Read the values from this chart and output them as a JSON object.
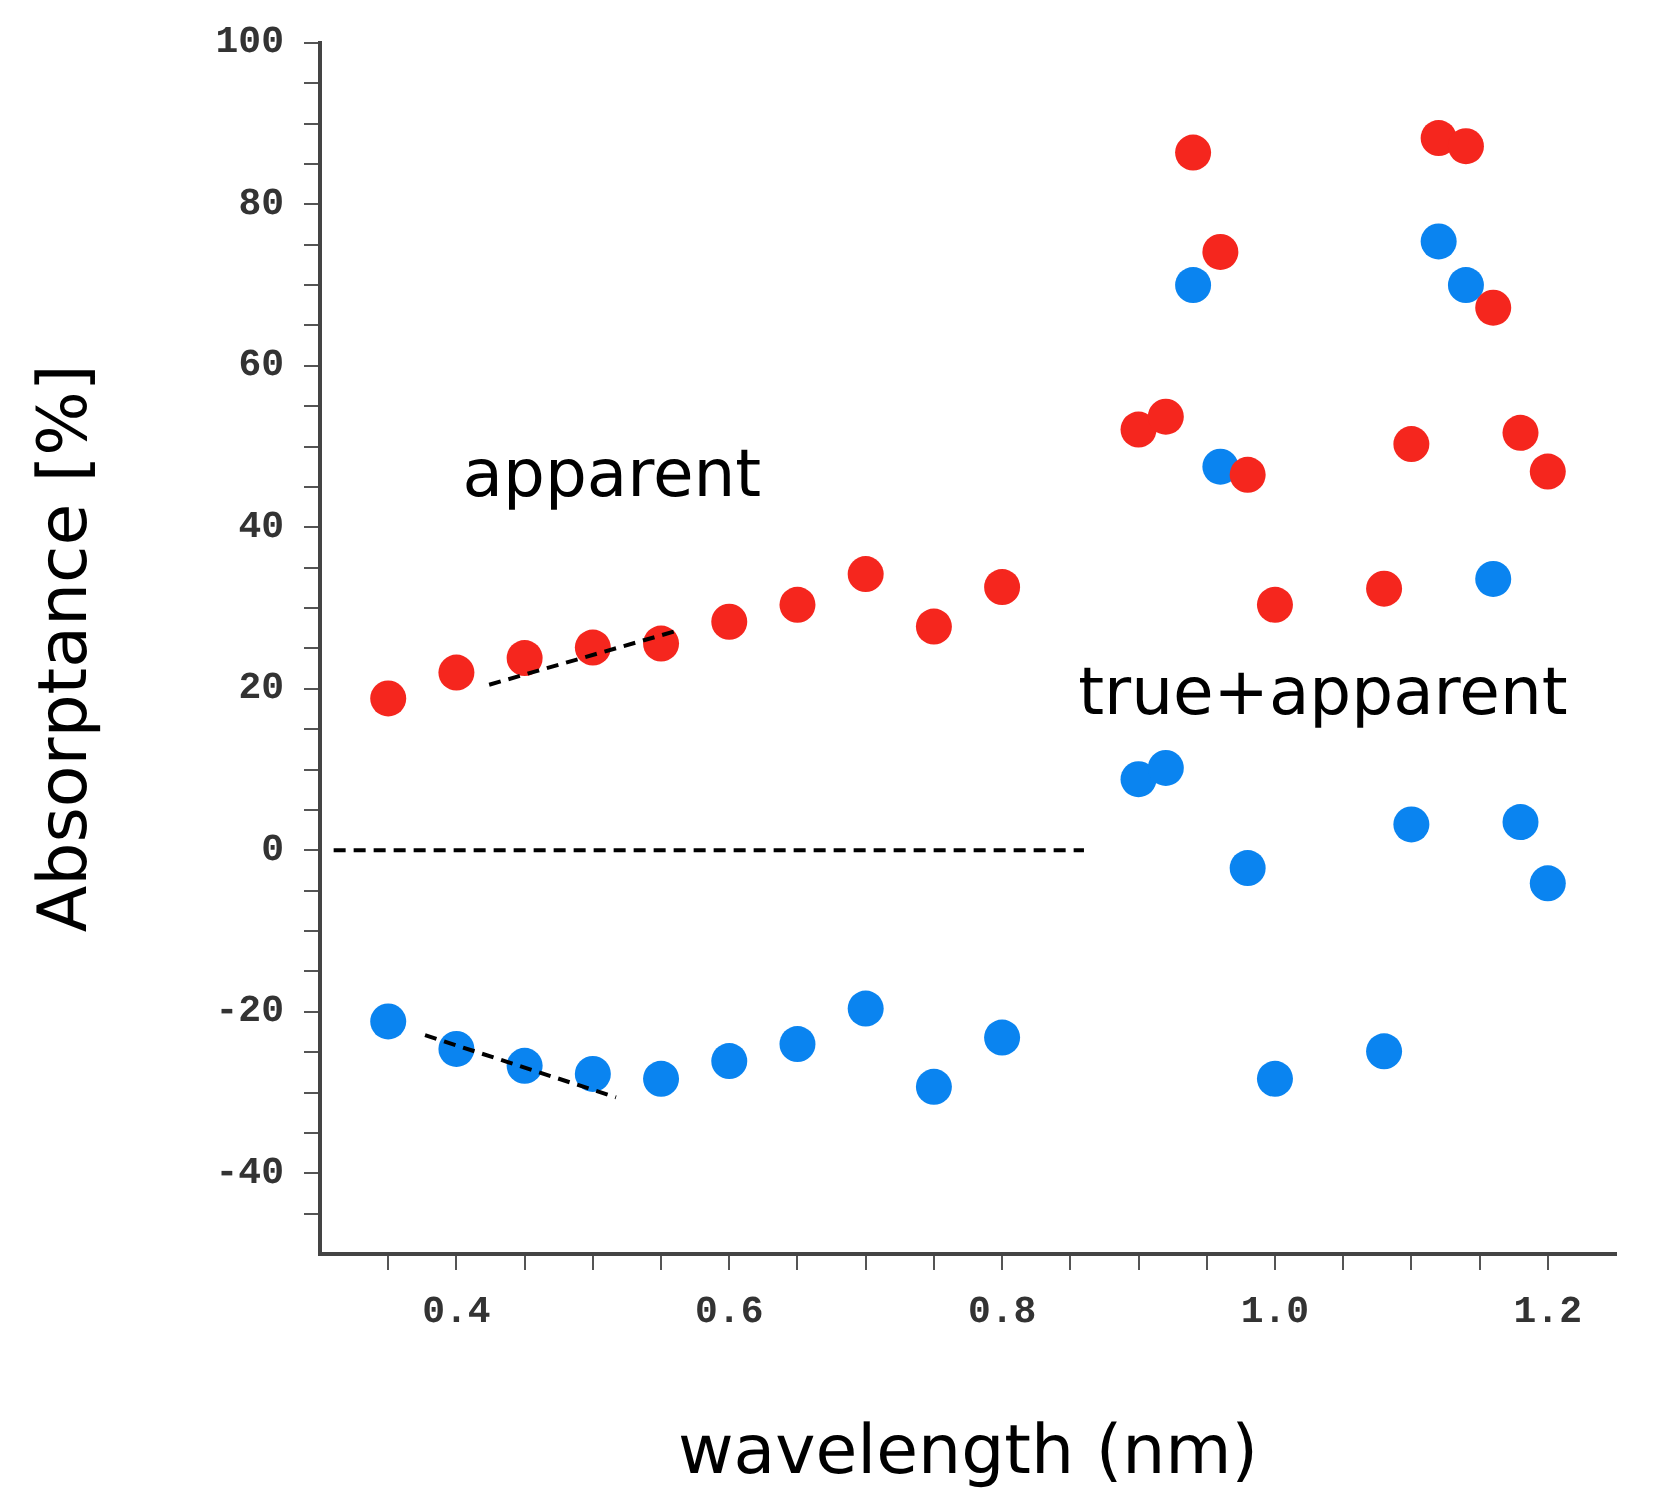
{
  "chart_data": {
    "type": "scatter",
    "xlabel": "wavelength (nm)",
    "ylabel": "Absorptance [%]",
    "annotations": [
      "apparent",
      "true+apparent"
    ],
    "xlim": [
      0.3,
      1.25
    ],
    "xticks": [
      {
        "value": 0.35,
        "label": null
      },
      0.4,
      {
        "value": 0.45,
        "label": null
      },
      {
        "value": 0.5,
        "label": null
      },
      {
        "value": 0.55,
        "label": null
      },
      0.6,
      {
        "value": 0.65,
        "label": null
      },
      {
        "value": 0.7,
        "label": null
      },
      {
        "value": 0.75,
        "label": null
      },
      0.8,
      {
        "value": 0.85,
        "label": null
      },
      {
        "value": 0.9,
        "label": null
      },
      {
        "value": 0.95,
        "label": null
      },
      {
        "value": 1,
        "label": "1.0"
      },
      {
        "value": 1.05,
        "label": null
      },
      {
        "value": 1.1,
        "label": null
      },
      {
        "value": 1.15,
        "label": null
      },
      1.2
    ],
    "ylim": [
      -50,
      100
    ],
    "yticks": [
      {
        "value": -45,
        "label": null
      },
      -40,
      {
        "value": -35,
        "label": null
      },
      {
        "value": -30,
        "label": null
      },
      {
        "value": -25,
        "label": null
      },
      -20,
      {
        "value": -15,
        "label": null
      },
      {
        "value": -10,
        "label": null
      },
      {
        "value": -5,
        "label": null
      },
      0,
      {
        "value": 5,
        "label": null
      },
      {
        "value": 10,
        "label": null
      },
      {
        "value": 15,
        "label": null
      },
      20,
      {
        "value": 25,
        "label": null
      },
      {
        "value": 30,
        "label": null
      },
      {
        "value": 35,
        "label": null
      },
      40,
      {
        "value": 45,
        "label": null
      },
      {
        "value": 50,
        "label": null
      },
      {
        "value": 55,
        "label": null
      },
      60,
      {
        "value": 65,
        "label": null
      },
      {
        "value": 70,
        "label": null
      },
      {
        "value": 75,
        "label": null
      },
      80,
      {
        "value": 85,
        "label": null
      },
      {
        "value": 90,
        "label": null
      },
      {
        "value": 95,
        "label": null
      },
      100
    ],
    "grid": false,
    "legend": false,
    "marker": "circle",
    "series": [
      {
        "color": "#f5261e",
        "x": [
          0.35,
          0.4,
          0.45,
          0.5,
          0.55,
          0.6,
          0.65,
          0.7,
          0.75,
          0.8,
          0.9,
          0.92,
          0.94,
          0.96,
          0.98,
          1.0,
          1.08,
          1.1,
          1.12,
          1.14,
          1.16,
          1.18,
          1.2
        ],
        "values": [
          18.8,
          22.0,
          23.8,
          25.1,
          25.6,
          28.3,
          30.4,
          34.2,
          27.7,
          32.6,
          52.1,
          53.7,
          86.4,
          74.1,
          46.5,
          30.4,
          32.4,
          50.3,
          88.2,
          87.2,
          67.2,
          51.7,
          46.9
        ]
      },
      {
        "color": "#0a84f0",
        "x": [
          0.35,
          0.4,
          0.45,
          0.5,
          0.55,
          0.6,
          0.65,
          0.7,
          0.75,
          0.8,
          0.9,
          0.92,
          0.94,
          0.96,
          0.98,
          1.0,
          1.08,
          1.1,
          1.12,
          1.14,
          1.16,
          1.18,
          1.2
        ],
        "values": [
          -21.2,
          -24.6,
          -26.7,
          -27.7,
          -28.3,
          -26.1,
          -24.0,
          -19.6,
          -29.3,
          -23.2,
          8.8,
          10.2,
          70.0,
          47.5,
          -2.2,
          -28.3,
          -24.9,
          3.2,
          75.4,
          70.0,
          33.6,
          3.5,
          -4.1
        ]
      },
      {
        "type": "line",
        "color": "#000000",
        "line_style": "dashed",
        "marker": "none",
        "x": [
          0.424,
          0.564
        ],
        "values": [
          20.5,
          27.3
        ]
      },
      {
        "type": "line",
        "color": "#000000",
        "line_style": "dashed",
        "marker": "none",
        "x": [
          0.377,
          0.517
        ],
        "values": [
          -22.9,
          -30.6
        ]
      },
      {
        "type": "line",
        "color": "#000000",
        "line_style": "dashed",
        "marker": "none",
        "x": [
          0.31,
          0.86
        ],
        "values": [
          0,
          0
        ]
      }
    ]
  }
}
